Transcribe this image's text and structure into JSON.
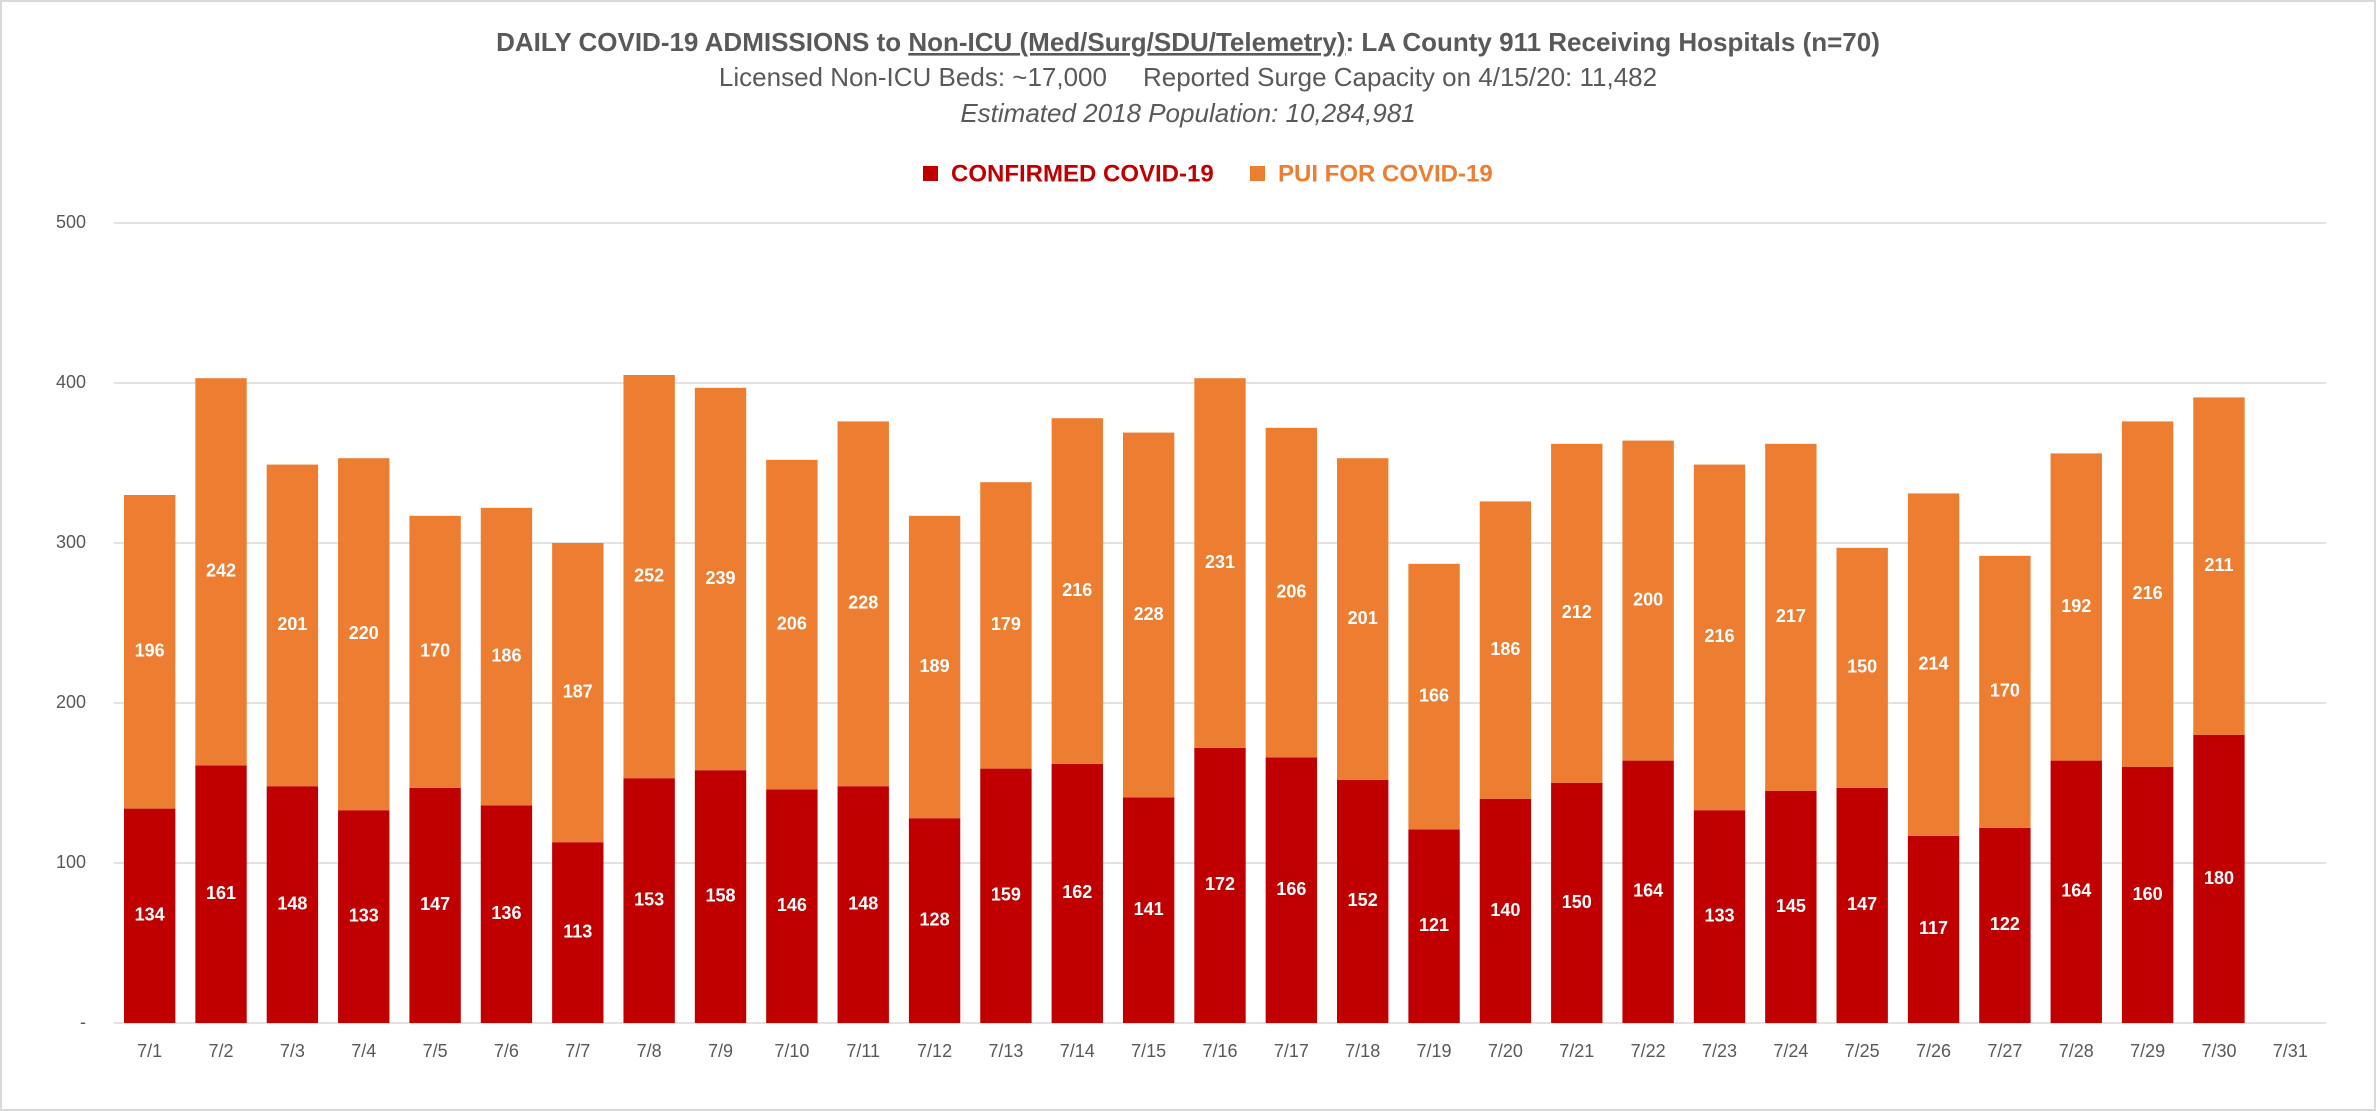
{
  "chart_data": {
    "type": "stacked-bar",
    "title_parts": [
      "DAILY COVID-19 ADMISSIONS to ",
      "Non-ICU (Med/Surg/SDU/Telemetry)",
      ": LA County 911 Receiving Hospitals (n=70)"
    ],
    "subtitle_parts": [
      "Licensed Non-ICU Beds: ~17,000",
      "Reported Surge Capacity on 4/15/20: 11,482"
    ],
    "note": "Estimated 2018 Population: 10,284,981",
    "categories": [
      "7/1",
      "7/2",
      "7/3",
      "7/4",
      "7/5",
      "7/6",
      "7/7",
      "7/8",
      "7/9",
      "7/10",
      "7/11",
      "7/12",
      "7/13",
      "7/14",
      "7/15",
      "7/16",
      "7/17",
      "7/18",
      "7/19",
      "7/20",
      "7/21",
      "7/22",
      "7/23",
      "7/24",
      "7/25",
      "7/26",
      "7/27",
      "7/28",
      "7/29",
      "7/30",
      "7/31"
    ],
    "series": [
      {
        "name": "CONFIRMED COVID-19",
        "color": "#c00000",
        "values": [
          134,
          161,
          148,
          133,
          147,
          136,
          113,
          153,
          158,
          146,
          148,
          128,
          159,
          162,
          141,
          172,
          166,
          152,
          121,
          140,
          150,
          164,
          133,
          145,
          147,
          117,
          122,
          164,
          160,
          180,
          null
        ]
      },
      {
        "name": "PUI FOR COVID-19",
        "color": "#ed7d31",
        "values": [
          196,
          242,
          201,
          220,
          170,
          186,
          187,
          252,
          239,
          206,
          228,
          189,
          179,
          216,
          228,
          231,
          206,
          201,
          166,
          186,
          212,
          200,
          216,
          217,
          150,
          214,
          170,
          192,
          216,
          211,
          null
        ]
      }
    ],
    "ylim": [
      0,
      500
    ],
    "yticks": [
      {
        "value": 0,
        "label": "-"
      },
      100,
      200,
      300,
      400,
      500
    ],
    "grid": true,
    "legend": "top"
  }
}
